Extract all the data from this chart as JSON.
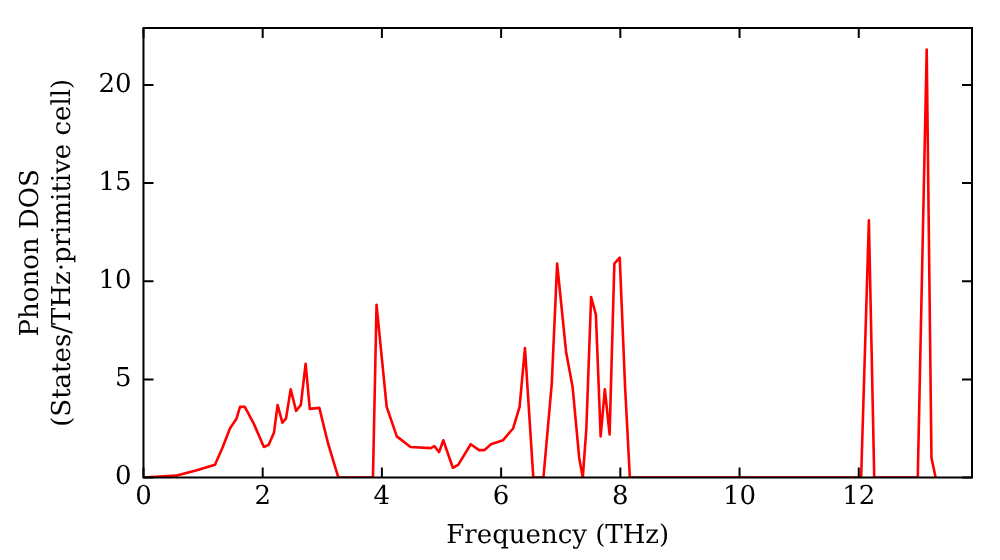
{
  "chart_data": {
    "type": "line",
    "xlabel": "Frequency (THz)",
    "ylabel": "Phonon DOS\n(States/THz·primitive cell)",
    "x": [
      0,
      0.54,
      0.88,
      1.2,
      1.33,
      1.45,
      1.56,
      1.62,
      1.7,
      1.85,
      2.02,
      2.1,
      2.19,
      2.25,
      2.33,
      2.39,
      2.47,
      2.56,
      2.64,
      2.72,
      2.79,
      2.95,
      3.1,
      3.27,
      3.85,
      3.91,
      4.08,
      4.25,
      4.48,
      4.82,
      4.88,
      4.96,
      5.03,
      5.19,
      5.28,
      5.49,
      5.63,
      5.72,
      5.83,
      6.03,
      6.2,
      6.31,
      6.4,
      6.54,
      6.71,
      6.85,
      6.94,
      7.09,
      7.2,
      7.31,
      7.37,
      7.43,
      7.51,
      7.59,
      7.67,
      7.74,
      7.82,
      7.9,
      7.99,
      8.08,
      8.16,
      12.04,
      12.17,
      12.26,
      12.99,
      13.14,
      13.22,
      13.29
    ],
    "series": [
      {
        "color": "#ff0000",
        "values": [
          0,
          0.1,
          0.36,
          0.65,
          1.56,
          2.5,
          3.0,
          3.6,
          3.6,
          2.75,
          1.56,
          1.67,
          2.3,
          3.7,
          2.8,
          3.0,
          4.5,
          3.4,
          3.7,
          5.8,
          3.5,
          3.55,
          1.7,
          0,
          0,
          8.8,
          3.6,
          2.1,
          1.56,
          1.5,
          1.6,
          1.3,
          1.9,
          0.5,
          0.65,
          1.7,
          1.4,
          1.4,
          1.7,
          1.9,
          2.5,
          3.6,
          6.6,
          0,
          0,
          4.8,
          10.9,
          6.4,
          4.6,
          1.0,
          0,
          2.5,
          9.2,
          8.3,
          2.1,
          4.5,
          2.2,
          10.9,
          11.2,
          4.6,
          0,
          0,
          13.1,
          0,
          0,
          21.8,
          1.0,
          0
        ]
      }
    ],
    "xlim": [
      0,
      13.9
    ],
    "xticks": [
      0,
      2,
      4,
      6,
      8,
      10,
      12
    ],
    "ylim": [
      0,
      22.9
    ],
    "yticks": [
      0,
      5,
      10,
      15,
      20
    ],
    "grid": false,
    "legend": false,
    "marker": "none",
    "line_style": "solid"
  }
}
